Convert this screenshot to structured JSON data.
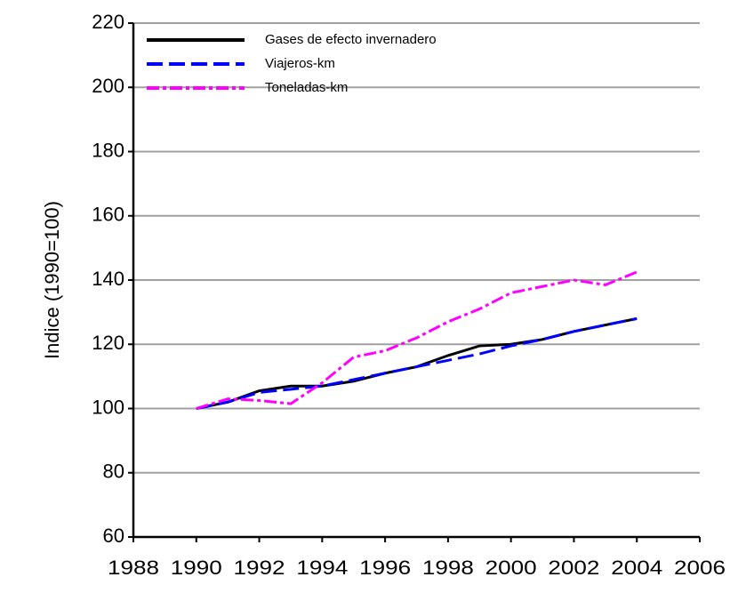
{
  "chart_data": {
    "type": "line",
    "y_label": "Indice (1990=100)",
    "x": [
      1990,
      1991,
      1992,
      1993,
      1994,
      1995,
      1996,
      1997,
      1998,
      1999,
      2000,
      2001,
      2002,
      2003,
      2004
    ],
    "series": [
      {
        "name": "Gases de efecto invernadero",
        "color": "#000000",
        "dash": "solid",
        "values": [
          100,
          102,
          105.5,
          107,
          107,
          108.5,
          111,
          113,
          116.5,
          119.5,
          120,
          121.5,
          124,
          126,
          128
        ]
      },
      {
        "name": "Viajeros-km",
        "color": "#0000ff",
        "dash": "dashed",
        "values": [
          100,
          102,
          105,
          106,
          107,
          109,
          111,
          113,
          115,
          117,
          119.5,
          121.5,
          124,
          126,
          128
        ]
      },
      {
        "name": "Toneladas-km",
        "color": "#ff00ff",
        "dash": "dashdot",
        "values": [
          100,
          103,
          102.5,
          101.5,
          108,
          116,
          118,
          122,
          127,
          131,
          136,
          138,
          140,
          138.5,
          142.5
        ]
      }
    ],
    "xlim": [
      1988,
      2006
    ],
    "xticks": [
      1988,
      1990,
      1992,
      1994,
      1996,
      1998,
      2000,
      2002,
      2004,
      2006
    ],
    "ylim": [
      60,
      220
    ],
    "yticks": [
      60,
      80,
      100,
      120,
      140,
      160,
      180,
      200,
      220
    ],
    "grid": true,
    "legend": "top-left"
  }
}
